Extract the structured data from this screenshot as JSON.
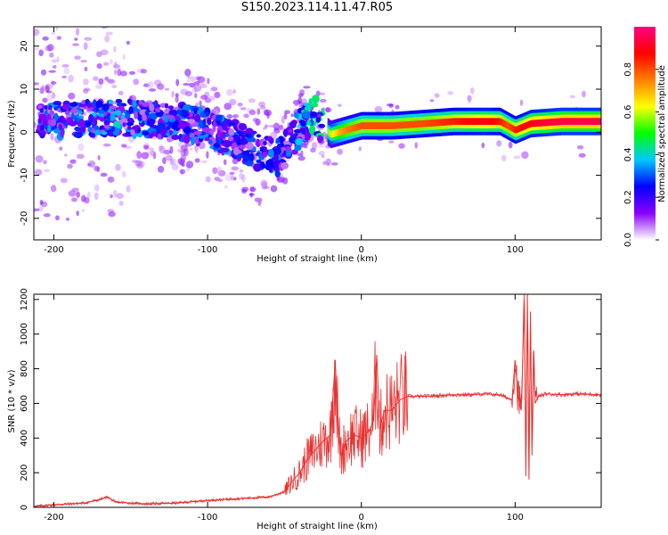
{
  "title": "S150.2023.114.11.47.R05",
  "chart_data": [
    {
      "type": "heatmap",
      "xlabel": "Height of straight line (km)",
      "ylabel": "Frequency (Hz)",
      "xlim": [
        -213,
        156
      ],
      "ylim": [
        -25,
        24.5
      ],
      "xticks": [
        -200,
        -100,
        0,
        100
      ],
      "yticks": [
        20,
        10,
        0,
        -10,
        -20
      ],
      "colorbar": {
        "label": "Normalized spectral amplitude",
        "range": [
          0.0,
          1.0
        ],
        "ticks": [
          0.0,
          0.2,
          0.4,
          0.6,
          0.8
        ],
        "colormap": [
          "#ffffff",
          "#8a00ff",
          "#0000ff",
          "#00c8ff",
          "#00ff00",
          "#ffff00",
          "#ff8000",
          "#ff0000",
          "#ff0080"
        ]
      },
      "ridge": {
        "x": [
          -185,
          -160,
          -140,
          -120,
          -100,
          -80,
          -65,
          -55,
          -45,
          -38,
          -30,
          -25,
          -20,
          -15,
          -10,
          0,
          20,
          40,
          60,
          80,
          90,
          95,
          100,
          110,
          130,
          156
        ],
        "freq_hz": [
          3,
          3.5,
          3,
          2.5,
          1,
          -2,
          -5,
          -6,
          -2,
          2,
          4,
          1,
          -0.5,
          0,
          0.5,
          1.5,
          1.5,
          2,
          2.5,
          2.5,
          2.5,
          1.5,
          0.5,
          2,
          2.5,
          2.5
        ],
        "amplitude": [
          0.3,
          0.35,
          0.3,
          0.3,
          0.3,
          0.3,
          0.3,
          0.3,
          0.3,
          0.35,
          0.45,
          0.5,
          0.6,
          0.7,
          0.75,
          0.8,
          0.8,
          0.8,
          0.85,
          0.9,
          0.85,
          0.8,
          0.85,
          0.9,
          0.95,
          0.95
        ]
      }
    },
    {
      "type": "line",
      "xlabel": "Height of straight line (km)",
      "ylabel": "SNR (10 * v/v)",
      "xlim": [
        -213,
        156
      ],
      "ylim": [
        0,
        1230
      ],
      "xticks": [
        -200,
        -100,
        0,
        100
      ],
      "yticks": [
        0,
        200,
        400,
        600,
        800,
        1000,
        1200
      ],
      "color": "#e83030",
      "series": [
        {
          "x": [
            -213,
            -200,
            -180,
            -170,
            -165,
            -160,
            -140,
            -120,
            -100,
            -80,
            -70,
            -60,
            -50,
            -45,
            -40,
            -35,
            -30,
            -25,
            -20,
            -17,
            -15,
            -13,
            -10,
            -5,
            0,
            5,
            8,
            10,
            12,
            15,
            20,
            25,
            30,
            40,
            50,
            60,
            70,
            80,
            90,
            98,
            100,
            102,
            104,
            106,
            107,
            108,
            109,
            110,
            111,
            112,
            113,
            115,
            120,
            130,
            140,
            156
          ],
          "y": [
            5,
            15,
            25,
            45,
            60,
            30,
            20,
            25,
            40,
            50,
            55,
            60,
            90,
            150,
            200,
            280,
            330,
            380,
            420,
            850,
            420,
            300,
            380,
            420,
            400,
            440,
            500,
            880,
            450,
            560,
            560,
            620,
            640,
            640,
            645,
            650,
            650,
            655,
            650,
            620,
            850,
            640,
            560,
            1180,
            180,
            1230,
            160,
            1130,
            300,
            900,
            600,
            640,
            655,
            650,
            655,
            650
          ]
        }
      ]
    }
  ]
}
